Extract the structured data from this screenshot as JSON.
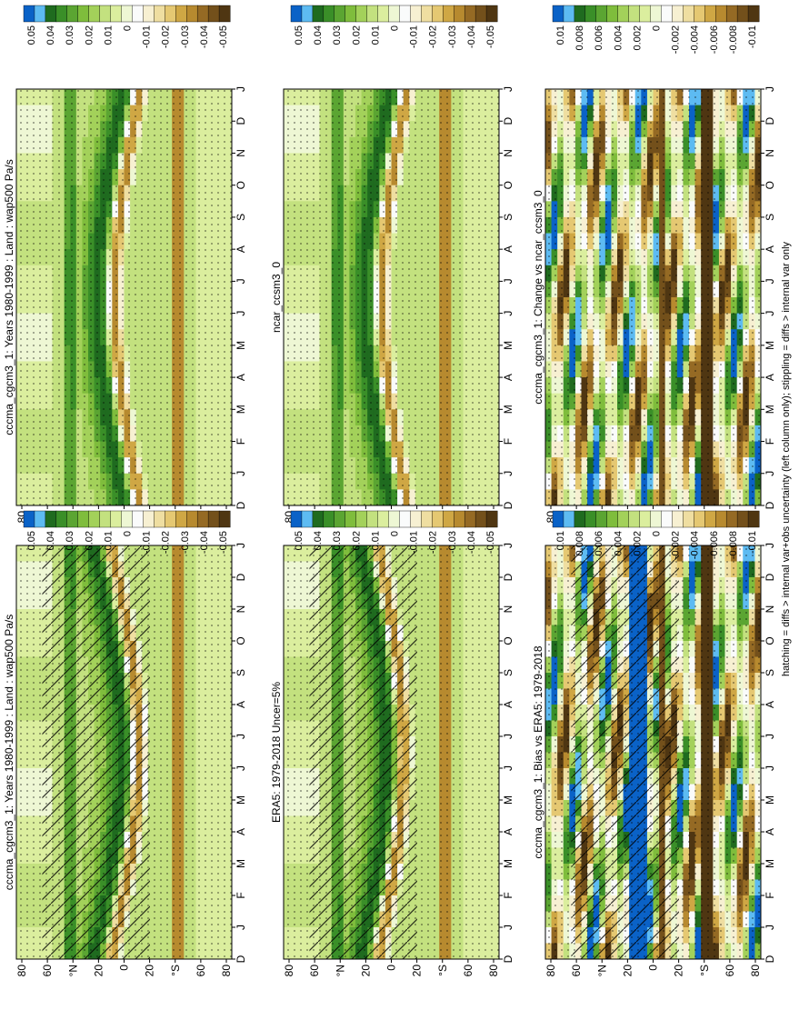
{
  "figure": {
    "footnote": "hatching = diffs > internal var+obs uncertainty (left column only); stippling = diffs > internal var only"
  },
  "chart_data": [
    {
      "type": "heatmap",
      "title": "cccma_cgcm3_1: Years 1980-1999 : Land : wap500 Pa/s",
      "months": [
        "D",
        "J",
        "F",
        "M",
        "A",
        "M",
        "J",
        "J",
        "A",
        "S",
        "O",
        "N",
        "D",
        "J"
      ],
      "lat_ticks": [
        "80",
        "60",
        "°N",
        "20",
        "0",
        "20",
        "°S",
        "60",
        "80"
      ],
      "colorbar_labels": [
        "0.05",
        "0.04",
        "0.03",
        "0.02",
        "0.01",
        "0",
        "-0.01",
        "-0.02",
        "-0.03",
        "-0.04",
        "-0.05"
      ],
      "features": {
        "band_lat_start": 10,
        "band_lat_end": 10,
        "band_lat_mid": -12,
        "hatched": true
      },
      "note": ""
    },
    {
      "type": "heatmap",
      "title": "cccma_cgcm3_1: Years 1980-1999 : Land : wap500 Pa/s",
      "months": [
        "D",
        "J",
        "F",
        "M",
        "A",
        "M",
        "J",
        "J",
        "A",
        "S",
        "O",
        "N",
        "D",
        "J"
      ],
      "lat_ticks": [
        "80",
        "60",
        "°N",
        "20",
        "0",
        "20",
        "°S",
        "60",
        "80"
      ],
      "colorbar_labels": [
        "0.05",
        "0.04",
        "0.03",
        "0.02",
        "0.01",
        "0",
        "-0.01",
        "-0.02",
        "-0.03",
        "-0.04",
        "-0.05"
      ],
      "features": {
        "band_lat_start": -12,
        "band_lat_end": -12,
        "band_lat_mid": 8,
        "hatched": false
      },
      "note": ""
    },
    {
      "type": "heatmap",
      "title": "ERA5: 1979-2018 Uncer=5%",
      "months": [
        "D",
        "J",
        "F",
        "M",
        "A",
        "M",
        "J",
        "J",
        "A",
        "S",
        "O",
        "N",
        "D",
        "J"
      ],
      "lat_ticks": [
        "80",
        "60",
        "°N",
        "20",
        "0",
        "20",
        "°S",
        "60",
        "80"
      ],
      "colorbar_labels": [
        "0.05",
        "0.04",
        "0.03",
        "0.02",
        "0.01",
        "0",
        "-0.01",
        "-0.02",
        "-0.03",
        "-0.04",
        "-0.05"
      ],
      "features": {
        "band_lat_start": 10,
        "band_lat_end": 10,
        "band_lat_mid": -10,
        "hatched": true
      },
      "note": ""
    },
    {
      "type": "heatmap",
      "title": "ncar_ccsm3_0",
      "months": [
        "D",
        "J",
        "F",
        "M",
        "A",
        "M",
        "J",
        "J",
        "A",
        "S",
        "O",
        "N",
        "D",
        "J"
      ],
      "lat_ticks": [
        "80",
        "60",
        "°N",
        "20",
        "0",
        "20",
        "°S",
        "60",
        "80"
      ],
      "colorbar_labels": [
        "0.05",
        "0.04",
        "0.03",
        "0.02",
        "0.01",
        "0",
        "-0.01",
        "-0.02",
        "-0.03",
        "-0.04",
        "-0.05"
      ],
      "features": {
        "band_lat_start": -12,
        "band_lat_end": -12,
        "band_lat_mid": 8,
        "hatched": false
      },
      "note": ""
    },
    {
      "type": "heatmap",
      "title": "cccma_cgcm3_1: Bias vs ERA5: 1979-2018",
      "months": [
        "D",
        "J",
        "F",
        "M",
        "A",
        "M",
        "J",
        "J",
        "A",
        "S",
        "O",
        "N",
        "D",
        "J"
      ],
      "lat_ticks": [
        "80",
        "60",
        "°N",
        "20",
        "0",
        "20",
        "°S",
        "60",
        "80"
      ],
      "colorbar_labels": [
        "0.01",
        "0.008",
        "0.006",
        "0.004",
        "0.002",
        "0",
        "-0.002",
        "-0.004",
        "-0.006",
        "-0.008",
        "-0.01"
      ],
      "features": {
        "band_lat_start": 0,
        "band_lat_end": 0,
        "band_lat_mid": 0,
        "hatched": true,
        "diff": true
      },
      "note": ""
    },
    {
      "type": "heatmap",
      "title": "cccma_cgcm3_1: Change vs ncar_ccsm3_0",
      "months": [
        "D",
        "J",
        "F",
        "M",
        "A",
        "M",
        "J",
        "J",
        "A",
        "S",
        "O",
        "N",
        "D",
        "J"
      ],
      "lat_ticks": [
        "80",
        "60",
        "°N",
        "20",
        "0",
        "20",
        "°S",
        "60",
        "80"
      ],
      "colorbar_labels": [
        "0.01",
        "0.008",
        "0.006",
        "0.004",
        "0.002",
        "0",
        "-0.002",
        "-0.004",
        "-0.006",
        "-0.008",
        "-0.01"
      ],
      "features": {
        "band_lat_start": 0,
        "band_lat_end": 0,
        "band_lat_mid": 0,
        "hatched": false,
        "diff": true
      },
      "note": ""
    }
  ]
}
